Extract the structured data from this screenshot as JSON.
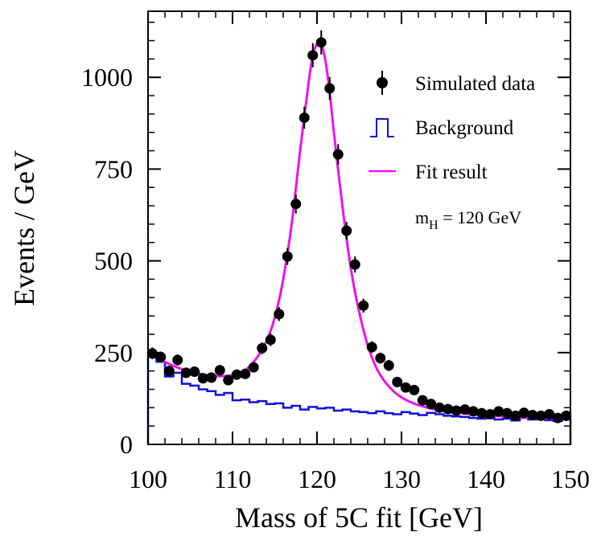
{
  "chart_data": {
    "type": "scatter",
    "xlabel": "Mass of 5C fit [GeV]",
    "ylabel": "Events / GeV",
    "xlim": [
      100,
      150
    ],
    "ylim": [
      0,
      1180
    ],
    "x_ticks": [
      100,
      110,
      120,
      130,
      140,
      150
    ],
    "x_tick_labels": [
      "100",
      "110",
      "120",
      "130",
      "140",
      "150"
    ],
    "y_ticks": [
      0,
      250,
      500,
      750,
      1000
    ],
    "y_tick_labels": [
      "0",
      "250",
      "500",
      "750",
      "1000"
    ],
    "grid": false,
    "legend_position": "top-right",
    "annotation": {
      "main": "m",
      "sub": "H",
      "rest": " = 120 GeV"
    },
    "series": [
      {
        "name": "Simulated data",
        "kind": "points-with-errors",
        "color": "#000000",
        "x": [
          100.5,
          101.5,
          102.5,
          103.5,
          104.5,
          105.5,
          106.5,
          107.5,
          108.5,
          109.5,
          110.5,
          111.5,
          112.5,
          113.5,
          114.5,
          115.5,
          116.5,
          117.5,
          118.5,
          119.5,
          120.5,
          121.5,
          122.5,
          123.5,
          124.5,
          125.5,
          126.5,
          127.5,
          128.5,
          129.5,
          130.5,
          131.5,
          132.5,
          133.5,
          134.5,
          135.5,
          136.5,
          137.5,
          138.5,
          139.5,
          140.5,
          141.5,
          142.5,
          143.5,
          144.5,
          145.5,
          146.5,
          147.5,
          148.5,
          149.5
        ],
        "y": [
          248,
          238,
          200,
          230,
          195,
          198,
          180,
          182,
          202,
          175,
          190,
          192,
          210,
          262,
          285,
          355,
          512,
          655,
          890,
          1060,
          1095,
          970,
          790,
          582,
          490,
          378,
          265,
          235,
          215,
          170,
          155,
          148,
          120,
          110,
          100,
          96,
          92,
          95,
          90,
          85,
          82,
          90,
          85,
          78,
          86,
          80,
          78,
          82,
          72,
          78
        ],
        "yerr": [
          16,
          15,
          14,
          15,
          14,
          14,
          13,
          13,
          14,
          13,
          14,
          14,
          14,
          16,
          17,
          19,
          23,
          26,
          30,
          33,
          33,
          31,
          28,
          24,
          22,
          19,
          16,
          15,
          15,
          13,
          12,
          12,
          11,
          10,
          10,
          10,
          10,
          10,
          9,
          9,
          9,
          9,
          9,
          9,
          9,
          9,
          9,
          9,
          8,
          9
        ]
      },
      {
        "name": "Background",
        "kind": "step-histogram",
        "color": "#1010dd",
        "edges": [
          100,
          101,
          102,
          103,
          104,
          105,
          106,
          107,
          108,
          109,
          110,
          111,
          112,
          113,
          114,
          115,
          116,
          117,
          118,
          119,
          120,
          121,
          122,
          123,
          124,
          125,
          126,
          127,
          128,
          129,
          130,
          131,
          132,
          133,
          134,
          135,
          136,
          137,
          138,
          139,
          140,
          141,
          142,
          143,
          144,
          145,
          146,
          147,
          148,
          149,
          150
        ],
        "values": [
          240,
          225,
          185,
          195,
          165,
          160,
          150,
          145,
          135,
          140,
          120,
          122,
          115,
          118,
          110,
          112,
          100,
          105,
          95,
          102,
          98,
          100,
          92,
          95,
          90,
          88,
          85,
          90,
          85,
          82,
          88,
          84,
          80,
          86,
          82,
          78,
          76,
          75,
          72,
          70,
          72,
          68,
          70,
          65,
          72,
          68,
          70,
          66,
          64,
          70
        ]
      },
      {
        "name": "Fit result",
        "kind": "curve",
        "color": "#ee11ee",
        "x": [
          100,
          102,
          104,
          106,
          108,
          110,
          111,
          112,
          113,
          114,
          115,
          116,
          117,
          118,
          119,
          119.5,
          120,
          120.3,
          120.6,
          121,
          121.5,
          122,
          123,
          124,
          125,
          126,
          127,
          128,
          129,
          130,
          131,
          132,
          134,
          136,
          138,
          140,
          142,
          144,
          146,
          148,
          150
        ],
        "y": [
          245,
          224,
          205,
          193,
          186,
          188,
          195,
          212,
          240,
          280,
          345,
          450,
          600,
          800,
          985,
          1060,
          1092,
          1095,
          1085,
          1045,
          960,
          850,
          650,
          480,
          360,
          270,
          210,
          172,
          146,
          128,
          116,
          107,
          95,
          88,
          83,
          79,
          76,
          74,
          72,
          70,
          68
        ]
      }
    ]
  }
}
